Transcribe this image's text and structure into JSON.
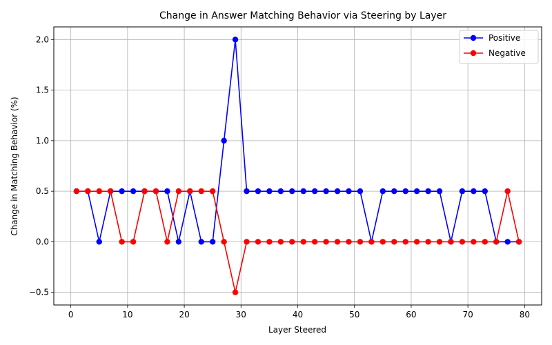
{
  "chart_data": {
    "type": "line",
    "title": "Change in Answer Matching Behavior via Steering by Layer",
    "xlabel": "Layer Steered",
    "ylabel": "Change in Matching Behavior (%)",
    "xlim": [
      -3,
      83
    ],
    "ylim": [
      -0.625,
      2.125
    ],
    "xticks": [
      0,
      10,
      20,
      30,
      40,
      50,
      60,
      70,
      80
    ],
    "yticks": [
      -0.5,
      0.0,
      0.5,
      1.0,
      1.5,
      2.0
    ],
    "ytick_labels": [
      "−0.5",
      "0.0",
      "0.5",
      "1.0",
      "1.5",
      "2.0"
    ],
    "grid": true,
    "legend_position": "top-right",
    "x": [
      1,
      3,
      5,
      7,
      9,
      11,
      13,
      15,
      17,
      19,
      21,
      23,
      25,
      27,
      29,
      31,
      33,
      35,
      37,
      39,
      41,
      43,
      45,
      47,
      49,
      51,
      53,
      55,
      57,
      59,
      61,
      63,
      65,
      67,
      69,
      71,
      73,
      75,
      77,
      79
    ],
    "series": [
      {
        "name": "Positive",
        "color": "#0000ff",
        "values": [
          0.5,
          0.5,
          0.0,
          0.5,
          0.5,
          0.5,
          0.5,
          0.5,
          0.5,
          0.0,
          0.5,
          0.0,
          0.0,
          1.0,
          2.0,
          0.5,
          0.5,
          0.5,
          0.5,
          0.5,
          0.5,
          0.5,
          0.5,
          0.5,
          0.5,
          0.5,
          0.0,
          0.5,
          0.5,
          0.5,
          0.5,
          0.5,
          0.5,
          0.0,
          0.5,
          0.5,
          0.5,
          0.0,
          0.0,
          0.0
        ]
      },
      {
        "name": "Negative",
        "color": "#ff0000",
        "values": [
          0.5,
          0.5,
          0.5,
          0.5,
          0.0,
          0.0,
          0.5,
          0.5,
          0.0,
          0.5,
          0.5,
          0.5,
          0.5,
          0.0,
          -0.5,
          0.0,
          0.0,
          0.0,
          0.0,
          0.0,
          0.0,
          0.0,
          0.0,
          0.0,
          0.0,
          0.0,
          0.0,
          0.0,
          0.0,
          0.0,
          0.0,
          0.0,
          0.0,
          0.0,
          0.0,
          0.0,
          0.0,
          0.0,
          0.5,
          0.0
        ]
      }
    ]
  }
}
